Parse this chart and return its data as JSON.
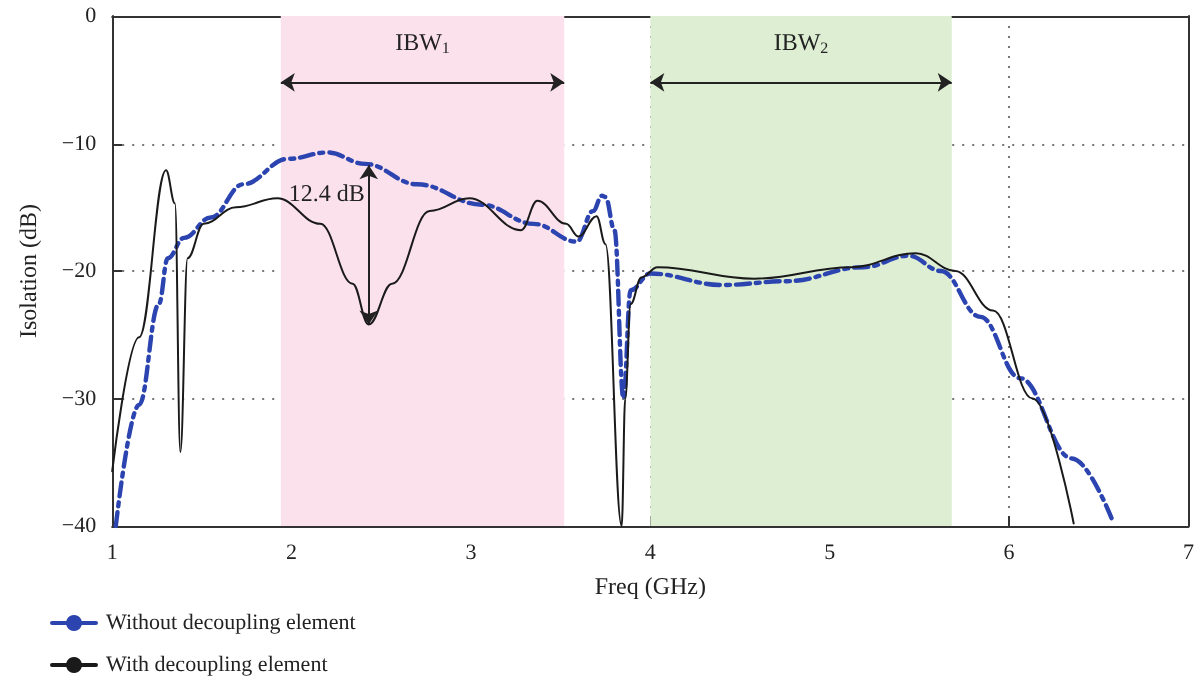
{
  "chart_data": {
    "type": "line",
    "xlabel": "Freq (GHz)",
    "ylabel": "Isolation (dB)",
    "xlim": [
      1,
      7
    ],
    "xticks": [
      1,
      2,
      3,
      4,
      5,
      6,
      7
    ],
    "ylim": [
      -40,
      0
    ],
    "yticks": [
      {
        "value": -40,
        "label": "−40"
      },
      {
        "value": -30,
        "label": "−30"
      },
      {
        "value": -20,
        "label": "−20"
      },
      {
        "value": -10,
        "label": "−10"
      },
      0
    ],
    "grid": true,
    "legend": "bottom left",
    "marker": "none",
    "series": [
      {
        "name": "Without decoupling element",
        "color": "#2b44b0",
        "line_style": "dashed",
        "x": [
          1.02,
          1.15,
          1.26,
          1.31,
          1.4,
          1.55,
          1.73,
          1.98,
          2.2,
          2.41,
          2.7,
          3.06,
          3.35,
          3.59,
          3.68,
          3.73,
          3.75,
          3.8,
          3.85,
          3.89,
          4.0,
          4.4,
          4.76,
          5.19,
          5.44,
          5.62,
          5.84,
          6.06,
          6.35,
          6.58
        ],
        "values": [
          -40,
          -30.5,
          -22.6,
          -19,
          -17.4,
          -15.8,
          -13.2,
          -11.2,
          -10.7,
          -11.6,
          -13.2,
          -14.8,
          -16.3,
          -17.7,
          -15.3,
          -14.1,
          -14.2,
          -16.8,
          -30,
          -21.5,
          -20.2,
          -21.1,
          -20.8,
          -19.7,
          -18.8,
          -20,
          -23.6,
          -28.4,
          -34.7,
          -39.7
        ]
      },
      {
        "name": "With decoupling element",
        "color": "#1a1a1a",
        "line_style": "solid",
        "x": [
          1.0,
          1.15,
          1.3,
          1.35,
          1.38,
          1.42,
          1.51,
          1.69,
          1.92,
          2.16,
          2.34,
          2.43,
          2.56,
          2.77,
          2.99,
          3.28,
          3.37,
          3.53,
          3.6,
          3.7,
          3.75,
          3.84,
          3.86,
          3.89,
          3.95,
          4.04,
          4.58,
          5.12,
          5.48,
          5.7,
          5.91,
          6.13,
          6.36
        ],
        "values": [
          -35.7,
          -25.2,
          -12.1,
          -14.7,
          -34.2,
          -19,
          -16.3,
          -15,
          -14.3,
          -16.3,
          -21,
          -24.2,
          -21,
          -15.3,
          -14.3,
          -16.8,
          -14.5,
          -16.3,
          -17.3,
          -15.7,
          -17.9,
          -40,
          -30,
          -22.6,
          -20.5,
          -19.7,
          -20.6,
          -19.7,
          -18.6,
          -20,
          -23.1,
          -30,
          -39.8
        ]
      }
    ],
    "bands": [
      {
        "axis": "x",
        "from": 1.94,
        "to": 3.52,
        "label": "IBW$_{1}$",
        "color": "#fbe1ec"
      },
      {
        "axis": "x",
        "from": 4.0,
        "to": 5.68,
        "label": "IBW$_{2}$",
        "color": "#ddeed3"
      }
    ],
    "annotations": [
      {
        "text": "12.4 dB",
        "x": 2.43,
        "y": -11.7
      }
    ]
  }
}
